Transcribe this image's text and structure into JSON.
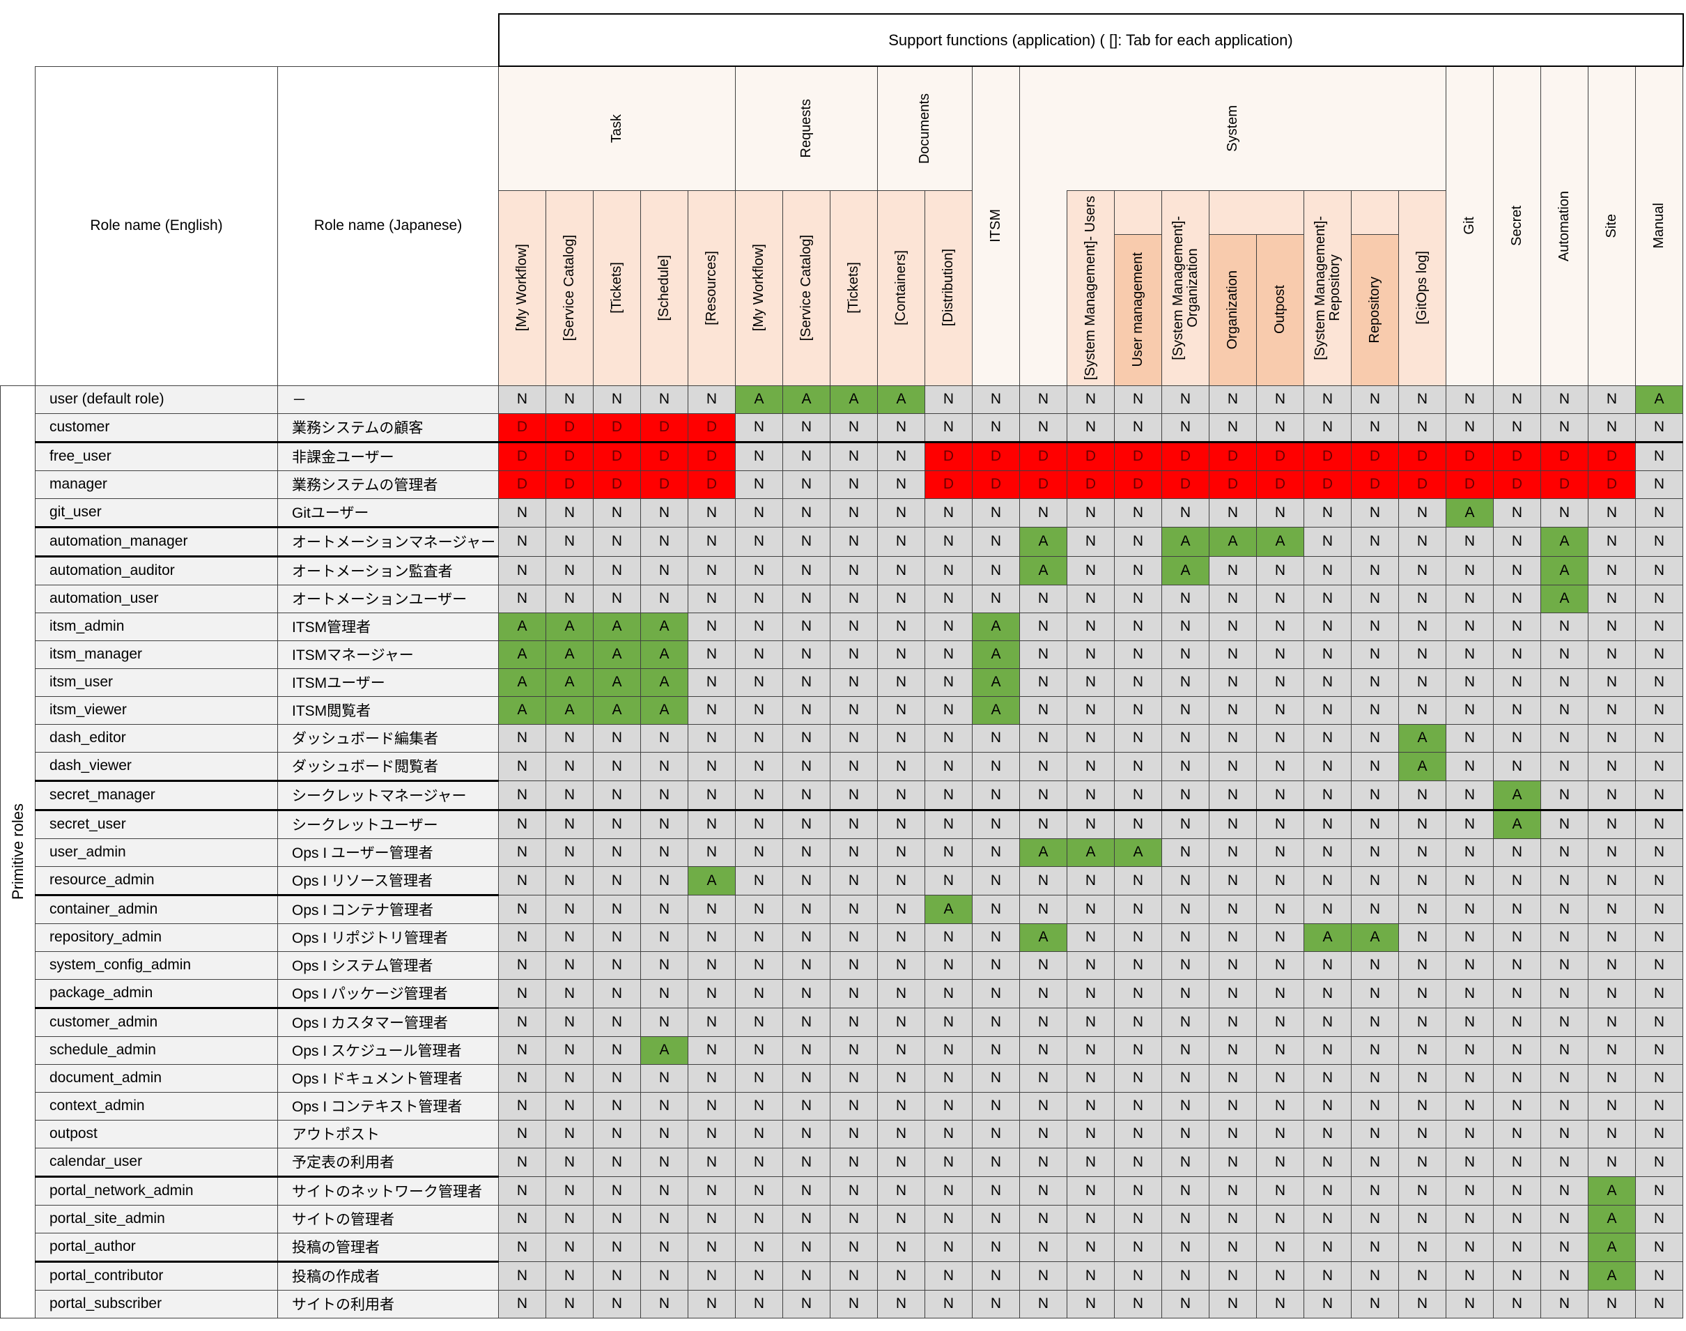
{
  "header": {
    "support_functions": "Support functions (application) ( []: Tab for each application)",
    "role_en": "Role name (English)",
    "role_ja": "Role name (Japanese)",
    "primitive_roles": "Primitive roles",
    "groups": {
      "task": "Task",
      "requests": "Requests",
      "documents": "Documents",
      "itsm": "ITSM",
      "system": "System",
      "git": "Git",
      "secret": "Secret",
      "automation": "Automation",
      "site": "Site",
      "manual": "Manual"
    },
    "columns": {
      "task_my_workflow": "[My Workflow]",
      "task_service_catalog": "[Service Catalog]",
      "task_tickets": "[Tickets]",
      "task_schedule": "[Schedule]",
      "task_resources": "[Resources]",
      "req_my_workflow": "[My Workflow]",
      "req_service_catalog": "[Service Catalog]",
      "req_tickets": "[Tickets]",
      "doc_containers": "[Containers]",
      "doc_distribution": "[Distribution]",
      "sys_users": "[System Management]- Users",
      "user_management": "User management",
      "sys_org": "[System Management]-\nOrganization",
      "organization": "Organization",
      "outpost": "Outpost",
      "sys_repo": "[System Management]-\nRepository",
      "repository": "Repository",
      "gitops_log": "[GitOps log]"
    }
  },
  "colors": {
    "allowed": "#70ad47",
    "denied": "#ff0000",
    "none": "#d9d9d9"
  },
  "rows": [
    {
      "en": "user (default role)",
      "ja": "－",
      "values": [
        "N",
        "N",
        "N",
        "N",
        "N",
        "A",
        "A",
        "A",
        "A",
        "N",
        "N",
        "N",
        "N",
        "N",
        "N",
        "N",
        "N",
        "N",
        "N",
        "N",
        "N",
        "N",
        "N",
        "N",
        "A"
      ]
    },
    {
      "en": "customer",
      "ja": "業務システムの顧客",
      "values": [
        "D",
        "D",
        "D",
        "D",
        "D",
        "N",
        "N",
        "N",
        "N",
        "N",
        "N",
        "N",
        "N",
        "N",
        "N",
        "N",
        "N",
        "N",
        "N",
        "N",
        "N",
        "N",
        "N",
        "N",
        "N"
      ]
    },
    {
      "en": "free_user",
      "ja": "非課金ユーザー",
      "values": [
        "D",
        "D",
        "D",
        "D",
        "D",
        "N",
        "N",
        "N",
        "N",
        "D",
        "D",
        "D",
        "D",
        "D",
        "D",
        "D",
        "D",
        "D",
        "D",
        "D",
        "D",
        "D",
        "D",
        "D",
        "N"
      ]
    },
    {
      "en": "manager",
      "ja": "業務システムの管理者",
      "values": [
        "D",
        "D",
        "D",
        "D",
        "D",
        "N",
        "N",
        "N",
        "N",
        "D",
        "D",
        "D",
        "D",
        "D",
        "D",
        "D",
        "D",
        "D",
        "D",
        "D",
        "D",
        "D",
        "D",
        "D",
        "N"
      ]
    },
    {
      "en": "git_user",
      "ja": "Gitユーザー",
      "values": [
        "N",
        "N",
        "N",
        "N",
        "N",
        "N",
        "N",
        "N",
        "N",
        "N",
        "N",
        "N",
        "N",
        "N",
        "N",
        "N",
        "N",
        "N",
        "N",
        "N",
        "A",
        "N",
        "N",
        "N",
        "N"
      ]
    },
    {
      "en": "automation_manager",
      "ja": "オートメーションマネージャー",
      "values": [
        "N",
        "N",
        "N",
        "N",
        "N",
        "N",
        "N",
        "N",
        "N",
        "N",
        "N",
        "A",
        "N",
        "N",
        "A",
        "A",
        "A",
        "N",
        "N",
        "N",
        "N",
        "N",
        "A",
        "N",
        "N"
      ]
    },
    {
      "en": "automation_auditor",
      "ja": "オートメーション監査者",
      "values": [
        "N",
        "N",
        "N",
        "N",
        "N",
        "N",
        "N",
        "N",
        "N",
        "N",
        "N",
        "A",
        "N",
        "N",
        "A",
        "N",
        "N",
        "N",
        "N",
        "N",
        "N",
        "N",
        "A",
        "N",
        "N"
      ]
    },
    {
      "en": "automation_user",
      "ja": "オートメーションユーザー",
      "values": [
        "N",
        "N",
        "N",
        "N",
        "N",
        "N",
        "N",
        "N",
        "N",
        "N",
        "N",
        "N",
        "N",
        "N",
        "N",
        "N",
        "N",
        "N",
        "N",
        "N",
        "N",
        "N",
        "A",
        "N",
        "N"
      ]
    },
    {
      "en": "itsm_admin",
      "ja": "ITSM管理者",
      "values": [
        "A",
        "A",
        "A",
        "A",
        "N",
        "N",
        "N",
        "N",
        "N",
        "N",
        "A",
        "N",
        "N",
        "N",
        "N",
        "N",
        "N",
        "N",
        "N",
        "N",
        "N",
        "N",
        "N",
        "N",
        "N"
      ]
    },
    {
      "en": "itsm_manager",
      "ja": "ITSMマネージャー",
      "values": [
        "A",
        "A",
        "A",
        "A",
        "N",
        "N",
        "N",
        "N",
        "N",
        "N",
        "A",
        "N",
        "N",
        "N",
        "N",
        "N",
        "N",
        "N",
        "N",
        "N",
        "N",
        "N",
        "N",
        "N",
        "N"
      ]
    },
    {
      "en": "itsm_user",
      "ja": "ITSMユーザー",
      "values": [
        "A",
        "A",
        "A",
        "A",
        "N",
        "N",
        "N",
        "N",
        "N",
        "N",
        "A",
        "N",
        "N",
        "N",
        "N",
        "N",
        "N",
        "N",
        "N",
        "N",
        "N",
        "N",
        "N",
        "N",
        "N"
      ]
    },
    {
      "en": "itsm_viewer",
      "ja": "ITSM閲覧者",
      "values": [
        "A",
        "A",
        "A",
        "A",
        "N",
        "N",
        "N",
        "N",
        "N",
        "N",
        "A",
        "N",
        "N",
        "N",
        "N",
        "N",
        "N",
        "N",
        "N",
        "N",
        "N",
        "N",
        "N",
        "N",
        "N"
      ]
    },
    {
      "en": "dash_editor",
      "ja": "ダッシュボード編集者",
      "values": [
        "N",
        "N",
        "N",
        "N",
        "N",
        "N",
        "N",
        "N",
        "N",
        "N",
        "N",
        "N",
        "N",
        "N",
        "N",
        "N",
        "N",
        "N",
        "N",
        "A",
        "N",
        "N",
        "N",
        "N",
        "N"
      ]
    },
    {
      "en": "dash_viewer",
      "ja": "ダッシュボード閲覧者",
      "values": [
        "N",
        "N",
        "N",
        "N",
        "N",
        "N",
        "N",
        "N",
        "N",
        "N",
        "N",
        "N",
        "N",
        "N",
        "N",
        "N",
        "N",
        "N",
        "N",
        "A",
        "N",
        "N",
        "N",
        "N",
        "N"
      ]
    },
    {
      "en": "secret_manager",
      "ja": "シークレットマネージャー",
      "values": [
        "N",
        "N",
        "N",
        "N",
        "N",
        "N",
        "N",
        "N",
        "N",
        "N",
        "N",
        "N",
        "N",
        "N",
        "N",
        "N",
        "N",
        "N",
        "N",
        "N",
        "N",
        "A",
        "N",
        "N",
        "N"
      ]
    },
    {
      "en": "secret_user",
      "ja": "シークレットユーザー",
      "values": [
        "N",
        "N",
        "N",
        "N",
        "N",
        "N",
        "N",
        "N",
        "N",
        "N",
        "N",
        "N",
        "N",
        "N",
        "N",
        "N",
        "N",
        "N",
        "N",
        "N",
        "N",
        "A",
        "N",
        "N",
        "N"
      ]
    },
    {
      "en": "user_admin",
      "ja": "Ops I ユーザー管理者",
      "values": [
        "N",
        "N",
        "N",
        "N",
        "N",
        "N",
        "N",
        "N",
        "N",
        "N",
        "N",
        "A",
        "A",
        "A",
        "N",
        "N",
        "N",
        "N",
        "N",
        "N",
        "N",
        "N",
        "N",
        "N",
        "N"
      ]
    },
    {
      "en": "resource_admin",
      "ja": "Ops I リソース管理者",
      "values": [
        "N",
        "N",
        "N",
        "N",
        "A",
        "N",
        "N",
        "N",
        "N",
        "N",
        "N",
        "N",
        "N",
        "N",
        "N",
        "N",
        "N",
        "N",
        "N",
        "N",
        "N",
        "N",
        "N",
        "N",
        "N"
      ]
    },
    {
      "en": "container_admin",
      "ja": "Ops I コンテナ管理者",
      "values": [
        "N",
        "N",
        "N",
        "N",
        "N",
        "N",
        "N",
        "N",
        "N",
        "A",
        "N",
        "N",
        "N",
        "N",
        "N",
        "N",
        "N",
        "N",
        "N",
        "N",
        "N",
        "N",
        "N",
        "N",
        "N"
      ]
    },
    {
      "en": "repository_admin",
      "ja": "Ops I リポジトリ管理者",
      "values": [
        "N",
        "N",
        "N",
        "N",
        "N",
        "N",
        "N",
        "N",
        "N",
        "N",
        "N",
        "A",
        "N",
        "N",
        "N",
        "N",
        "N",
        "A",
        "A",
        "N",
        "N",
        "N",
        "N",
        "N",
        "N"
      ]
    },
    {
      "en": "system_config_admin",
      "ja": "Ops I システム管理者",
      "values": [
        "N",
        "N",
        "N",
        "N",
        "N",
        "N",
        "N",
        "N",
        "N",
        "N",
        "N",
        "N",
        "N",
        "N",
        "N",
        "N",
        "N",
        "N",
        "N",
        "N",
        "N",
        "N",
        "N",
        "N",
        "N"
      ]
    },
    {
      "en": "package_admin",
      "ja": "Ops I パッケージ管理者",
      "values": [
        "N",
        "N",
        "N",
        "N",
        "N",
        "N",
        "N",
        "N",
        "N",
        "N",
        "N",
        "N",
        "N",
        "N",
        "N",
        "N",
        "N",
        "N",
        "N",
        "N",
        "N",
        "N",
        "N",
        "N",
        "N"
      ]
    },
    {
      "en": "customer_admin",
      "ja": "Ops I カスタマー管理者",
      "values": [
        "N",
        "N",
        "N",
        "N",
        "N",
        "N",
        "N",
        "N",
        "N",
        "N",
        "N",
        "N",
        "N",
        "N",
        "N",
        "N",
        "N",
        "N",
        "N",
        "N",
        "N",
        "N",
        "N",
        "N",
        "N"
      ]
    },
    {
      "en": "schedule_admin",
      "ja": "Ops I スケジュール管理者",
      "values": [
        "N",
        "N",
        "N",
        "A",
        "N",
        "N",
        "N",
        "N",
        "N",
        "N",
        "N",
        "N",
        "N",
        "N",
        "N",
        "N",
        "N",
        "N",
        "N",
        "N",
        "N",
        "N",
        "N",
        "N",
        "N"
      ]
    },
    {
      "en": "document_admin",
      "ja": "Ops I ドキュメント管理者",
      "values": [
        "N",
        "N",
        "N",
        "N",
        "N",
        "N",
        "N",
        "N",
        "N",
        "N",
        "N",
        "N",
        "N",
        "N",
        "N",
        "N",
        "N",
        "N",
        "N",
        "N",
        "N",
        "N",
        "N",
        "N",
        "N"
      ]
    },
    {
      "en": "context_admin",
      "ja": "Ops I コンテキスト管理者",
      "values": [
        "N",
        "N",
        "N",
        "N",
        "N",
        "N",
        "N",
        "N",
        "N",
        "N",
        "N",
        "N",
        "N",
        "N",
        "N",
        "N",
        "N",
        "N",
        "N",
        "N",
        "N",
        "N",
        "N",
        "N",
        "N"
      ]
    },
    {
      "en": "outpost",
      "ja": "アウトポスト",
      "values": [
        "N",
        "N",
        "N",
        "N",
        "N",
        "N",
        "N",
        "N",
        "N",
        "N",
        "N",
        "N",
        "N",
        "N",
        "N",
        "N",
        "N",
        "N",
        "N",
        "N",
        "N",
        "N",
        "N",
        "N",
        "N"
      ]
    },
    {
      "en": "calendar_user",
      "ja": "予定表の利用者",
      "values": [
        "N",
        "N",
        "N",
        "N",
        "N",
        "N",
        "N",
        "N",
        "N",
        "N",
        "N",
        "N",
        "N",
        "N",
        "N",
        "N",
        "N",
        "N",
        "N",
        "N",
        "N",
        "N",
        "N",
        "N",
        "N"
      ]
    },
    {
      "en": "portal_network_admin",
      "ja": "サイトのネットワーク管理者",
      "values": [
        "N",
        "N",
        "N",
        "N",
        "N",
        "N",
        "N",
        "N",
        "N",
        "N",
        "N",
        "N",
        "N",
        "N",
        "N",
        "N",
        "N",
        "N",
        "N",
        "N",
        "N",
        "N",
        "N",
        "A",
        "N"
      ]
    },
    {
      "en": "portal_site_admin",
      "ja": "サイトの管理者",
      "values": [
        "N",
        "N",
        "N",
        "N",
        "N",
        "N",
        "N",
        "N",
        "N",
        "N",
        "N",
        "N",
        "N",
        "N",
        "N",
        "N",
        "N",
        "N",
        "N",
        "N",
        "N",
        "N",
        "N",
        "A",
        "N"
      ]
    },
    {
      "en": "portal_author",
      "ja": "投稿の管理者",
      "values": [
        "N",
        "N",
        "N",
        "N",
        "N",
        "N",
        "N",
        "N",
        "N",
        "N",
        "N",
        "N",
        "N",
        "N",
        "N",
        "N",
        "N",
        "N",
        "N",
        "N",
        "N",
        "N",
        "N",
        "A",
        "N"
      ]
    },
    {
      "en": "portal_contributor",
      "ja": "投稿の作成者",
      "values": [
        "N",
        "N",
        "N",
        "N",
        "N",
        "N",
        "N",
        "N",
        "N",
        "N",
        "N",
        "N",
        "N",
        "N",
        "N",
        "N",
        "N",
        "N",
        "N",
        "N",
        "N",
        "N",
        "N",
        "A",
        "N"
      ]
    },
    {
      "en": "portal_subscriber",
      "ja": "サイトの利用者",
      "values": [
        "N",
        "N",
        "N",
        "N",
        "N",
        "N",
        "N",
        "N",
        "N",
        "N",
        "N",
        "N",
        "N",
        "N",
        "N",
        "N",
        "N",
        "N",
        "N",
        "N",
        "N",
        "N",
        "N",
        "N",
        "N"
      ]
    }
  ]
}
